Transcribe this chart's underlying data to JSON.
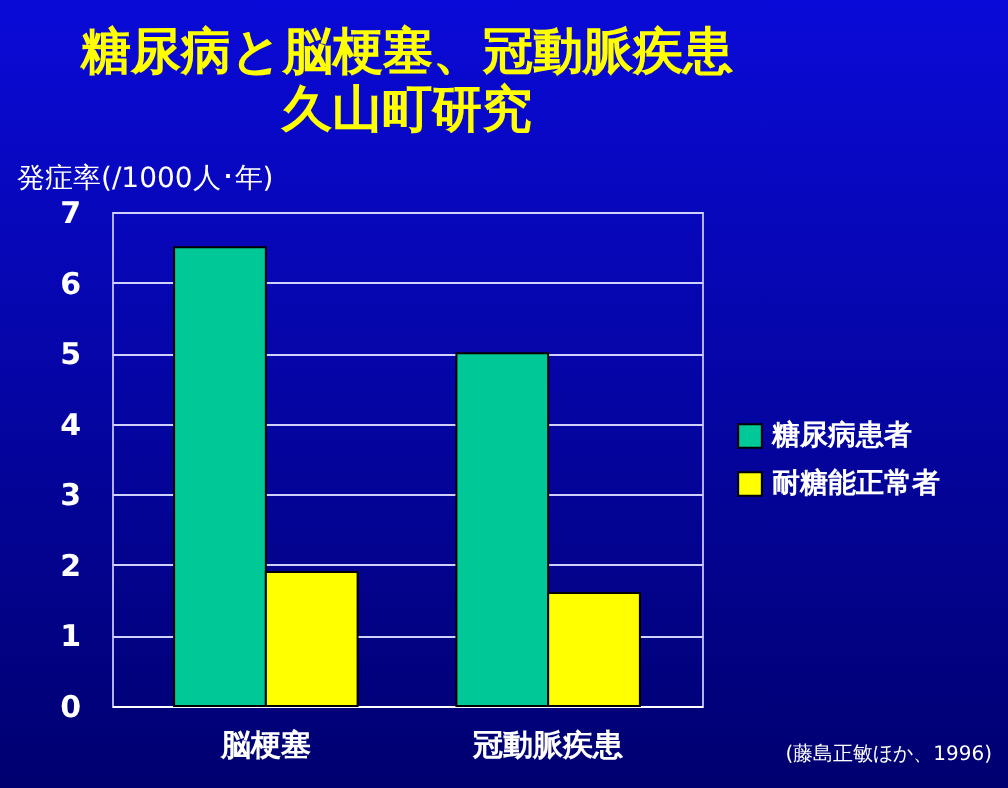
{
  "chart_data": {
    "type": "bar",
    "title": "糖尿病と脳梗塞、冠動脈疾患",
    "subtitle": "久山町研究",
    "ylabel": "発症率(/1000人･年)",
    "categories": [
      "脳梗塞",
      "冠動脈疾患"
    ],
    "series": [
      {
        "name": "糖尿病患者",
        "color": "#00c896",
        "values": [
          6.5,
          5.0
        ]
      },
      {
        "name": "耐糖能正常者",
        "color": "#ffff00",
        "values": [
          1.9,
          1.6
        ]
      }
    ],
    "ylim": [
      0,
      7
    ],
    "yticks": [
      0,
      1,
      2,
      3,
      4,
      5,
      6,
      7
    ],
    "grid": "y",
    "legend": "right",
    "annotations": [
      "(藤島正敏ほか、1996)"
    ]
  }
}
